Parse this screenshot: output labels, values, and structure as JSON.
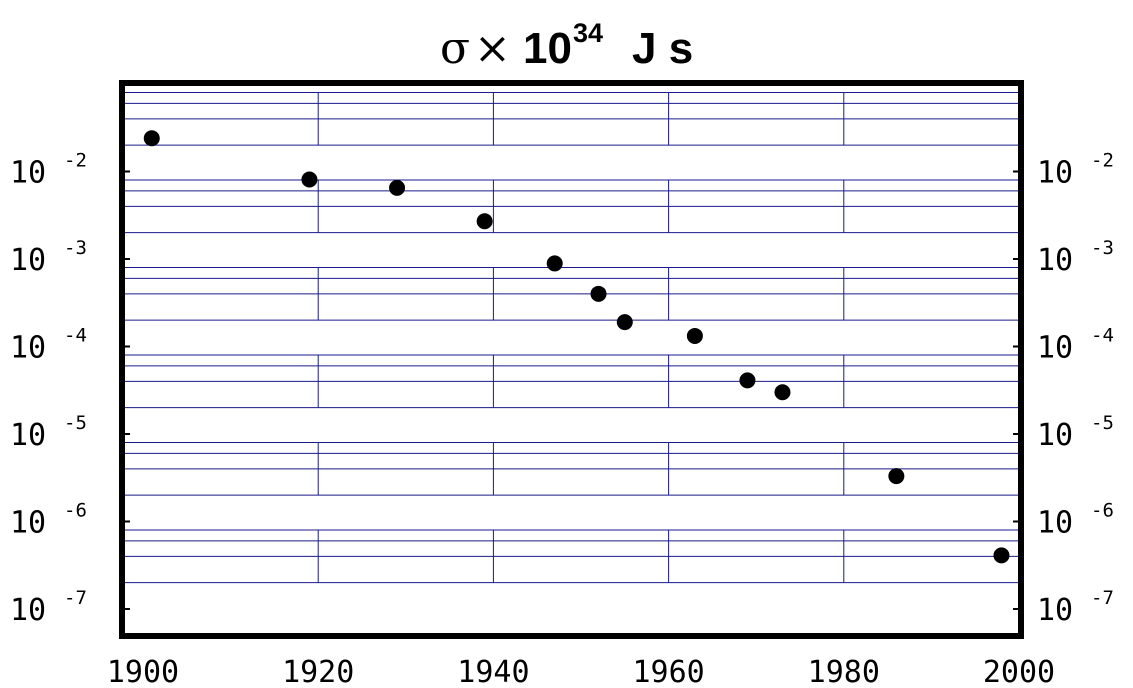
{
  "chart_data": {
    "type": "scatter",
    "title": {
      "symbol": "σ",
      "times": "×",
      "base": "10",
      "exponent": "34",
      "unit": "J s"
    },
    "xlabel": "",
    "ylabel": "",
    "x_scale": "linear",
    "y_scale": "log",
    "xlim": [
      1900,
      2000
    ],
    "ylim": [
      1e-07,
      0.1
    ],
    "x_ticks": [
      "1900",
      "1920",
      "1940",
      "1960",
      "1980",
      "2000"
    ],
    "y_ticks": [
      {
        "base": "10",
        "exp": "-2"
      },
      {
        "base": "10",
        "exp": "-3"
      },
      {
        "base": "10",
        "exp": "-4"
      },
      {
        "base": "10",
        "exp": "-5"
      },
      {
        "base": "10",
        "exp": "-6"
      },
      {
        "base": "10",
        "exp": "-7"
      }
    ],
    "y_ticks_both_sides": true,
    "grid": "minor horizontal lines and short vertical ticks",
    "grid_color": "#1a1a8c",
    "marker_color": "#000000",
    "points": [
      {
        "x": 1901,
        "y": 0.024
      },
      {
        "x": 1919,
        "y": 0.0081
      },
      {
        "x": 1929,
        "y": 0.0065
      },
      {
        "x": 1939,
        "y": 0.0027
      },
      {
        "x": 1947,
        "y": 0.00089
      },
      {
        "x": 1952,
        "y": 0.0004
      },
      {
        "x": 1955,
        "y": 0.00019
      },
      {
        "x": 1963,
        "y": 0.000132
      },
      {
        "x": 1969,
        "y": 4.1e-05
      },
      {
        "x": 1973,
        "y": 3e-05
      },
      {
        "x": 1986,
        "y": 3.3e-06
      },
      {
        "x": 1998,
        "y": 4.1e-07
      }
    ]
  }
}
